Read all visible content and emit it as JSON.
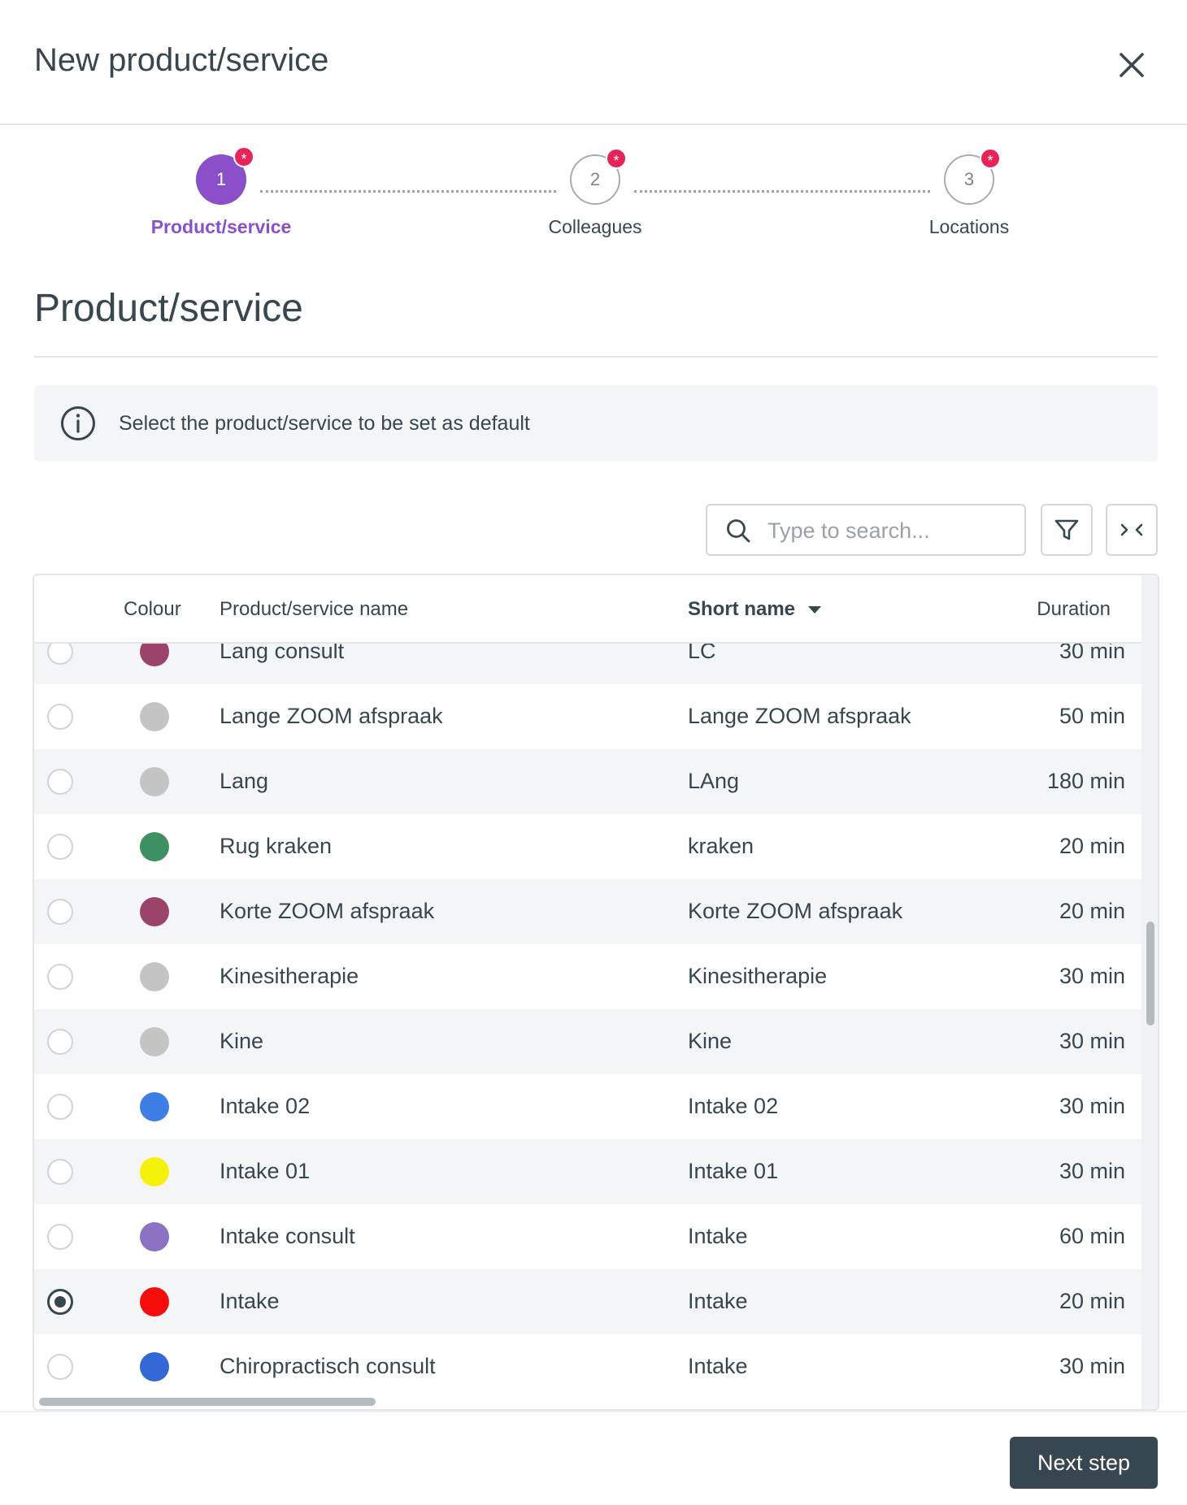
{
  "dialog": {
    "title": "New product/service"
  },
  "stepper": {
    "steps": [
      {
        "number": "1",
        "label": "Product/service",
        "required_mark": "*"
      },
      {
        "number": "2",
        "label": "Colleagues",
        "required_mark": "*"
      },
      {
        "number": "3",
        "label": "Locations",
        "required_mark": "*"
      }
    ],
    "active_step": 1
  },
  "section": {
    "title": "Product/service"
  },
  "info": {
    "text": "Select the product/service to be set as default"
  },
  "search": {
    "placeholder": "Type to search..."
  },
  "table": {
    "columns": [
      "Colour",
      "Product/service name",
      "Short name",
      "Duration"
    ],
    "sorted_column": "Short name",
    "rows": [
      {
        "colour": "#9c4369",
        "name": "Lang consult",
        "short": "LC",
        "duration": "30 min",
        "selected": false
      },
      {
        "colour": "#c4c4c4",
        "name": "Lange ZOOM afspraak",
        "short": "Lange ZOOM afspraak",
        "duration": "50 min",
        "selected": false
      },
      {
        "colour": "#c4c4c4",
        "name": "Lang",
        "short": "LAng",
        "duration": "180 min",
        "selected": false
      },
      {
        "colour": "#3e8f62",
        "name": "Rug kraken",
        "short": "kraken",
        "duration": "20 min",
        "selected": false
      },
      {
        "colour": "#9c4369",
        "name": "Korte ZOOM afspraak",
        "short": "Korte ZOOM afspraak",
        "duration": "20 min",
        "selected": false
      },
      {
        "colour": "#c4c4c4",
        "name": "Kinesitherapie",
        "short": "Kinesitherapie",
        "duration": "30 min",
        "selected": false
      },
      {
        "colour": "#c4c4c4",
        "name": "Kine",
        "short": "Kine",
        "duration": "30 min",
        "selected": false
      },
      {
        "colour": "#3d7fe6",
        "name": "Intake 02",
        "short": "Intake 02",
        "duration": "30 min",
        "selected": false
      },
      {
        "colour": "#f5f20a",
        "name": "Intake 01",
        "short": "Intake 01",
        "duration": "30 min",
        "selected": false
      },
      {
        "colour": "#8c72c2",
        "name": "Intake consult",
        "short": "Intake",
        "duration": "60 min",
        "selected": false
      },
      {
        "colour": "#f70c0c",
        "name": "Intake",
        "short": "Intake",
        "duration": "20 min",
        "selected": true
      },
      {
        "colour": "#3468d6",
        "name": "Chiropractisch consult",
        "short": "Intake",
        "duration": "30 min",
        "selected": false
      }
    ]
  },
  "footer": {
    "next_label": "Next step"
  },
  "colors": {
    "accent": "#8a4fc9",
    "badge": "#e8235a",
    "primary_button": "#37474f"
  }
}
